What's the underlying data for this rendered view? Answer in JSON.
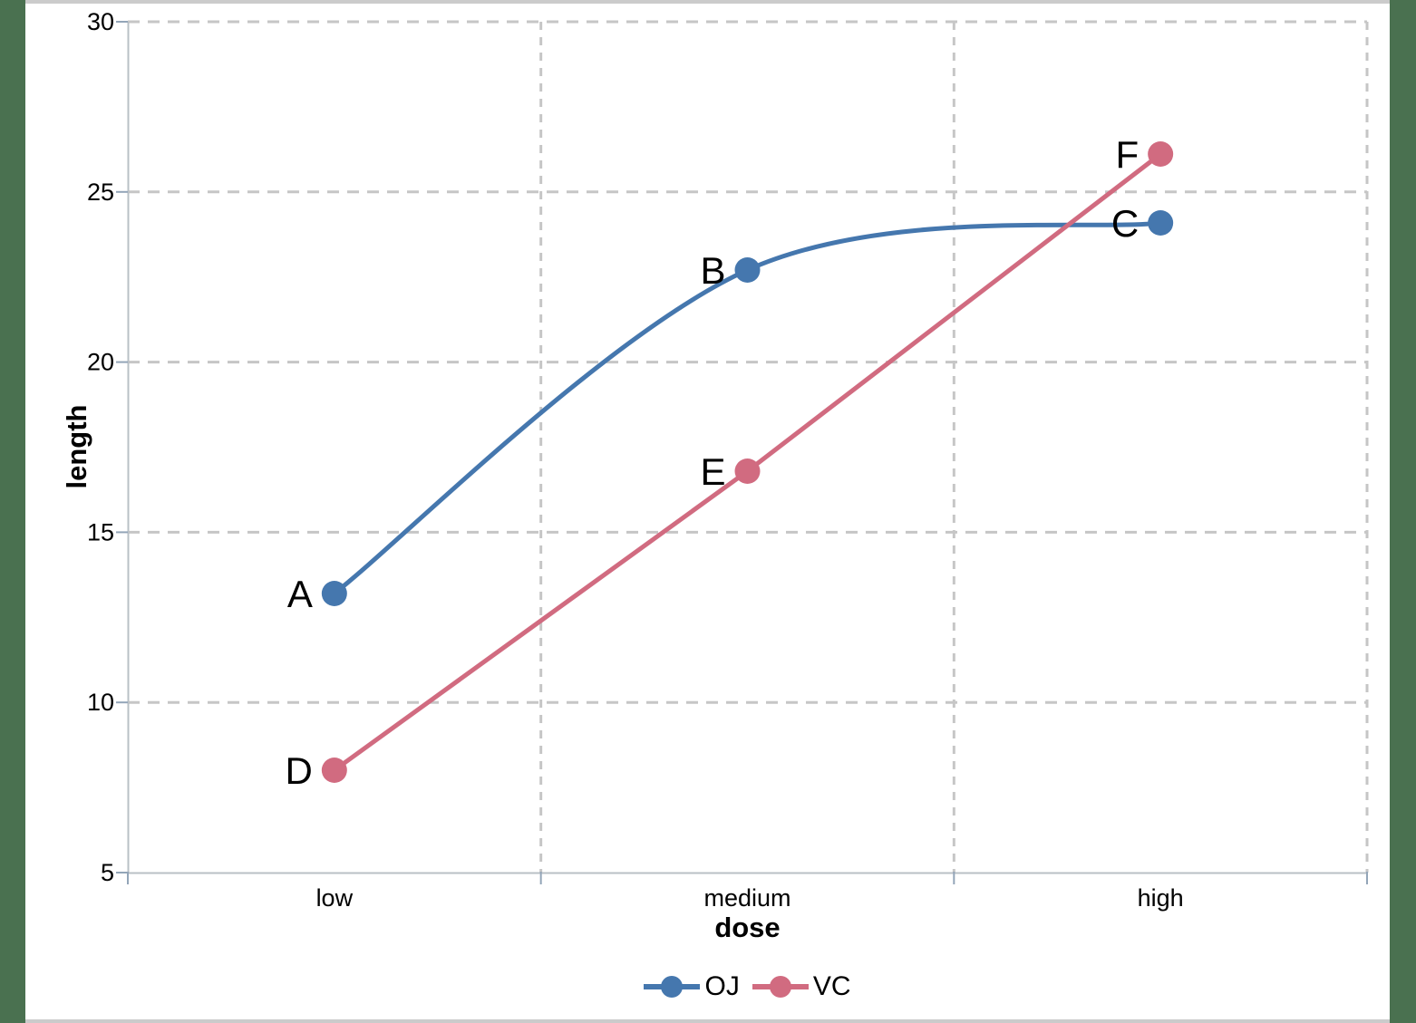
{
  "frame": {
    "side_color": "#4a7150",
    "border_color": "#cbcbcb",
    "paper_color": "#ffffff"
  },
  "chart_data": {
    "type": "line",
    "title": "",
    "categories": [
      "low",
      "medium",
      "high"
    ],
    "series": [
      {
        "name": "OJ",
        "color": "#4577ae",
        "values": [
          13.2,
          22.7,
          24.1
        ],
        "point_labels": [
          "A",
          "B",
          "C"
        ],
        "smooth": true
      },
      {
        "name": "VC",
        "color": "#d16b80",
        "values": [
          8.0,
          16.8,
          26.1
        ],
        "point_labels": [
          "D",
          "E",
          "F"
        ],
        "smooth": false
      }
    ],
    "xlabel": "dose",
    "ylabel": "length",
    "ylim": [
      5,
      30
    ],
    "yticks": [
      5,
      10,
      15,
      20,
      25,
      30
    ],
    "grid": "dashed",
    "legend_position": "bottom",
    "gridline_color": "#c6c6c6",
    "axis_line_color": "#b9c0c6",
    "tick_color": "#93a5b8",
    "text_color": "#000000"
  }
}
